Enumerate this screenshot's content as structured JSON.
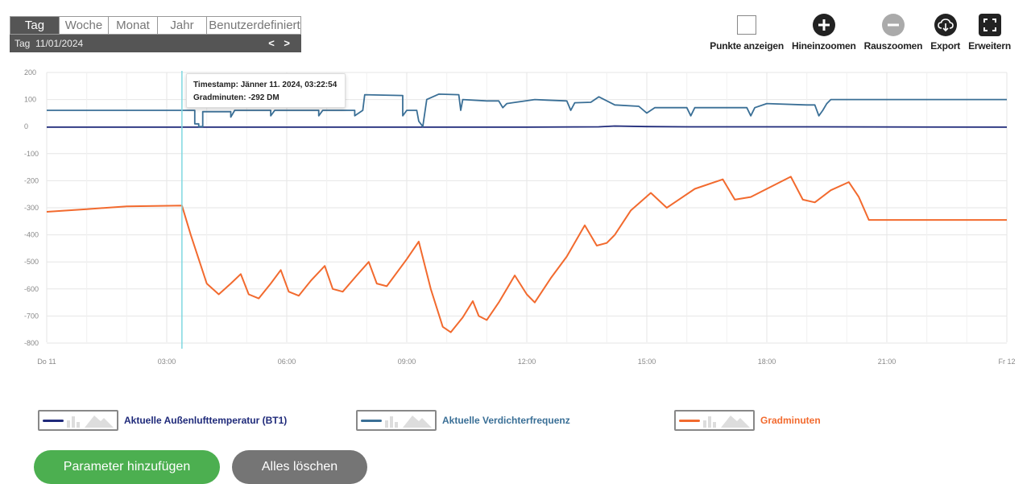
{
  "range_tabs": [
    "Tag",
    "Woche",
    "Monat",
    "Jahr",
    "Benutzerdefiniert"
  ],
  "active_tab": "Tag",
  "date_label": "Tag  11/01/2024",
  "nav": {
    "prev": "<",
    "next": ">"
  },
  "toolbar": {
    "show_points": "Punkte anzeigen",
    "zoom_in": "Hineinzoomen",
    "zoom_out": "Rauszoomen",
    "export": "Export",
    "expand": "Erweitern"
  },
  "tooltip": {
    "timestamp": "Timestamp: Jänner 11. 2024, 03:22:54",
    "value": "Gradminuten: -292 DM"
  },
  "legend": [
    {
      "label": "Aktuelle Außenlufttemperatur (BT1)",
      "color": "#1f2a7a"
    },
    {
      "label": "Aktuelle Verdichterfrequenz",
      "color": "#3a6f96"
    },
    {
      "label": "Gradminuten",
      "color": "#f26a2e"
    }
  ],
  "buttons": {
    "add": "Parameter hinzufügen",
    "clear": "Alles löschen"
  },
  "colors": {
    "outdoor": "#1f2a7a",
    "compressor": "#3a6f96",
    "degree": "#f26a2e",
    "cursor": "#7fd8e0"
  },
  "chart_data": {
    "type": "line",
    "x_unit": "hour",
    "xlim": [
      0,
      24
    ],
    "ylim": [
      -850,
      200
    ],
    "y_ticks": [
      200,
      100,
      0,
      -100,
      -200,
      -300,
      -400,
      -500,
      -600,
      -700,
      -800
    ],
    "x_tick_labels": [
      {
        "x": 0,
        "label": "Do 11"
      },
      {
        "x": 3,
        "label": "03:00"
      },
      {
        "x": 6,
        "label": "06:00"
      },
      {
        "x": 9,
        "label": "09:00"
      },
      {
        "x": 12,
        "label": "12:00"
      },
      {
        "x": 15,
        "label": "15:00"
      },
      {
        "x": 18,
        "label": "18:00"
      },
      {
        "x": 21,
        "label": "21:00"
      },
      {
        "x": 24,
        "label": "Fr 12"
      }
    ],
    "cursor_x": 3.38,
    "series": [
      {
        "name": "Aktuelle Außenlufttemperatur (BT1)",
        "color": "#1f2a7a",
        "points": [
          [
            0,
            -2
          ],
          [
            3,
            -2
          ],
          [
            6,
            -2
          ],
          [
            9,
            -2
          ],
          [
            12,
            -2
          ],
          [
            13.8,
            -1
          ],
          [
            14.2,
            2
          ],
          [
            15,
            0
          ],
          [
            16,
            -1
          ],
          [
            19,
            -1
          ],
          [
            24,
            -2
          ]
        ]
      },
      {
        "name": "Aktuelle Verdichterfrequenz",
        "color": "#3a6f96",
        "points": [
          [
            0,
            60
          ],
          [
            3.7,
            60
          ],
          [
            3.7,
            10
          ],
          [
            3.8,
            10
          ],
          [
            3.8,
            0
          ],
          [
            3.9,
            0
          ],
          [
            3.9,
            55
          ],
          [
            4.6,
            55
          ],
          [
            4.6,
            35
          ],
          [
            4.7,
            60
          ],
          [
            5.6,
            60
          ],
          [
            5.6,
            40
          ],
          [
            5.7,
            60
          ],
          [
            6.8,
            60
          ],
          [
            6.8,
            40
          ],
          [
            6.9,
            60
          ],
          [
            7.7,
            60
          ],
          [
            7.7,
            40
          ],
          [
            7.9,
            60
          ],
          [
            7.95,
            118
          ],
          [
            8.9,
            115
          ],
          [
            8.9,
            40
          ],
          [
            9,
            60
          ],
          [
            9.25,
            60
          ],
          [
            9.3,
            20
          ],
          [
            9.4,
            0
          ],
          [
            9.5,
            100
          ],
          [
            9.8,
            120
          ],
          [
            10.3,
            118
          ],
          [
            10.35,
            60
          ],
          [
            10.4,
            100
          ],
          [
            11,
            95
          ],
          [
            11.3,
            95
          ],
          [
            11.4,
            70
          ],
          [
            11.5,
            85
          ],
          [
            12.2,
            100
          ],
          [
            12.5,
            98
          ],
          [
            13,
            95
          ],
          [
            13.1,
            60
          ],
          [
            13.2,
            88
          ],
          [
            13.6,
            90
          ],
          [
            13.8,
            110
          ],
          [
            14.2,
            80
          ],
          [
            14.8,
            75
          ],
          [
            15,
            50
          ],
          [
            15.2,
            70
          ],
          [
            16,
            70
          ],
          [
            16.1,
            40
          ],
          [
            16.2,
            70
          ],
          [
            17.5,
            70
          ],
          [
            17.6,
            40
          ],
          [
            17.7,
            70
          ],
          [
            18,
            85
          ],
          [
            19,
            80
          ],
          [
            19.2,
            80
          ],
          [
            19.3,
            40
          ],
          [
            19.4,
            60
          ],
          [
            19.5,
            85
          ],
          [
            19.6,
            100
          ],
          [
            24,
            100
          ]
        ]
      },
      {
        "name": "Gradminuten",
        "color": "#f26a2e",
        "points": [
          [
            0,
            -315
          ],
          [
            1,
            -305
          ],
          [
            2,
            -295
          ],
          [
            3.38,
            -292
          ],
          [
            3.6,
            -400
          ],
          [
            4,
            -580
          ],
          [
            4.3,
            -620
          ],
          [
            4.6,
            -580
          ],
          [
            4.85,
            -545
          ],
          [
            5.05,
            -620
          ],
          [
            5.3,
            -635
          ],
          [
            5.6,
            -580
          ],
          [
            5.85,
            -530
          ],
          [
            6.05,
            -610
          ],
          [
            6.3,
            -625
          ],
          [
            6.6,
            -570
          ],
          [
            6.95,
            -515
          ],
          [
            7.15,
            -600
          ],
          [
            7.4,
            -610
          ],
          [
            7.75,
            -550
          ],
          [
            8.05,
            -500
          ],
          [
            8.25,
            -580
          ],
          [
            8.5,
            -590
          ],
          [
            9,
            -490
          ],
          [
            9.3,
            -425
          ],
          [
            9.6,
            -600
          ],
          [
            9.9,
            -740
          ],
          [
            10.1,
            -760
          ],
          [
            10.4,
            -705
          ],
          [
            10.65,
            -645
          ],
          [
            10.8,
            -700
          ],
          [
            11,
            -715
          ],
          [
            11.3,
            -650
          ],
          [
            11.7,
            -550
          ],
          [
            12,
            -620
          ],
          [
            12.2,
            -650
          ],
          [
            12.6,
            -560
          ],
          [
            13,
            -480
          ],
          [
            13.45,
            -365
          ],
          [
            13.75,
            -440
          ],
          [
            14,
            -430
          ],
          [
            14.2,
            -400
          ],
          [
            14.6,
            -310
          ],
          [
            15.1,
            -245
          ],
          [
            15.5,
            -300
          ],
          [
            15.8,
            -270
          ],
          [
            16.2,
            -230
          ],
          [
            16.9,
            -195
          ],
          [
            17.2,
            -270
          ],
          [
            17.6,
            -260
          ],
          [
            18,
            -230
          ],
          [
            18.6,
            -185
          ],
          [
            18.9,
            -270
          ],
          [
            19.2,
            -280
          ],
          [
            19.6,
            -235
          ],
          [
            20.05,
            -205
          ],
          [
            20.3,
            -260
          ],
          [
            20.55,
            -345
          ],
          [
            24,
            -345
          ]
        ]
      }
    ]
  }
}
